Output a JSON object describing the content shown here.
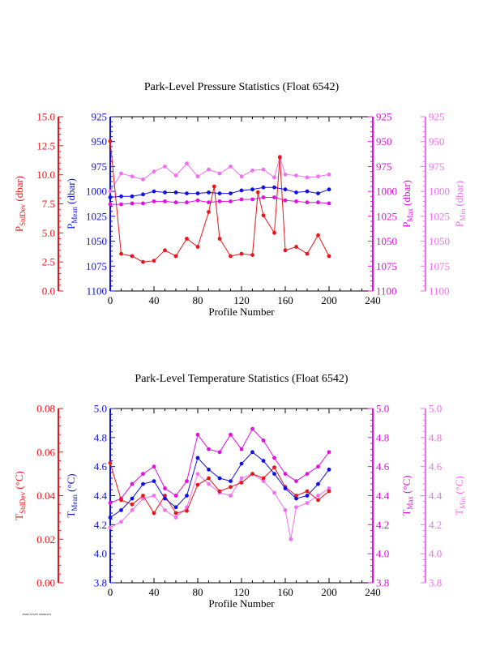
{
  "colors": {
    "stddev": "#e8161b",
    "mean": "#1010e0",
    "max": "#e010e0",
    "min": "#f070f0",
    "frame": "#000000"
  },
  "footer_text": "PARKSTATS 20060123",
  "chart_data": [
    {
      "type": "line",
      "title": "Park-Level Pressure Statistics (Float 6542)",
      "xlabel": "Profile Number",
      "xlim": [
        0,
        240
      ],
      "x_ticks": [
        "0",
        "40",
        "80",
        "120",
        "160",
        "200",
        "240"
      ],
      "grid": false,
      "legend": "none",
      "axes": [
        {
          "label_main": "P",
          "label_sub": "StdDev",
          "label_unit": " (dbar)",
          "range": [
            0,
            15
          ],
          "inverted": false,
          "side": "left-outer",
          "ticks": [
            "0.0",
            "2.5",
            "5.0",
            "7.5",
            "10.0",
            "12.5",
            "15.0"
          ]
        },
        {
          "label_main": "P",
          "label_sub": "Mean",
          "label_unit": " (dbar)",
          "range": [
            925,
            1100
          ],
          "inverted": true,
          "side": "left-inner",
          "ticks": [
            "925",
            "950",
            "975",
            "1000",
            "1025",
            "1050",
            "1075",
            "1100"
          ]
        },
        {
          "label_main": "P",
          "label_sub": "Max",
          "label_unit": " (dbar)",
          "range": [
            925,
            1100
          ],
          "inverted": true,
          "side": "right-inner",
          "ticks": [
            "925",
            "950",
            "975",
            "1000",
            "1025",
            "1050",
            "1075",
            "1100"
          ]
        },
        {
          "label_main": "P",
          "label_sub": "Min",
          "label_unit": " (dbar)",
          "range": [
            925,
            1100
          ],
          "inverted": true,
          "side": "right-outer",
          "ticks": [
            "925",
            "950",
            "975",
            "1000",
            "1025",
            "1050",
            "1075",
            "1100"
          ]
        }
      ],
      "series": [
        {
          "name": "StdDev",
          "axis": 0,
          "x": [
            0,
            10,
            20,
            30,
            40,
            50,
            60,
            70,
            80,
            90,
            95,
            100,
            110,
            120,
            130,
            135,
            140,
            150,
            155,
            160,
            170,
            180,
            190,
            200
          ],
          "y": [
            12.9,
            3.2,
            3.0,
            2.5,
            2.6,
            3.5,
            3.0,
            4.5,
            3.8,
            6.8,
            9.0,
            4.5,
            3.0,
            3.2,
            3.1,
            8.5,
            6.5,
            5.0,
            11.5,
            3.5,
            3.8,
            3.2,
            4.8,
            3.0
          ]
        },
        {
          "name": "Mean",
          "axis": 1,
          "x": [
            0,
            10,
            20,
            30,
            40,
            50,
            60,
            70,
            80,
            90,
            100,
            110,
            120,
            130,
            140,
            150,
            160,
            170,
            180,
            190,
            200
          ],
          "y": [
            1006,
            1005,
            1005,
            1003,
            1000,
            1001,
            1001,
            1002,
            1002,
            1001,
            1002,
            1002,
            999,
            998,
            996,
            996,
            998,
            1001,
            1000,
            1002,
            998
          ]
        },
        {
          "name": "Max",
          "axis": 2,
          "x": [
            0,
            10,
            20,
            30,
            40,
            50,
            60,
            70,
            80,
            90,
            100,
            110,
            120,
            130,
            140,
            150,
            160,
            170,
            180,
            190,
            200
          ],
          "y": [
            1013,
            1013,
            1012,
            1012,
            1010,
            1010,
            1011,
            1011,
            1009,
            1011,
            1010,
            1010,
            1008,
            1008,
            1006,
            1006,
            1009,
            1010,
            1011,
            1011,
            1012
          ]
        },
        {
          "name": "Min",
          "axis": 3,
          "x": [
            0,
            10,
            20,
            30,
            40,
            50,
            60,
            70,
            80,
            90,
            100,
            110,
            120,
            130,
            140,
            150,
            155,
            160,
            170,
            180,
            190,
            200
          ],
          "y": [
            1000,
            982,
            985,
            988,
            980,
            975,
            984,
            972,
            985,
            978,
            982,
            975,
            985,
            979,
            978,
            986,
            965,
            983,
            984,
            986,
            985,
            983
          ]
        }
      ]
    },
    {
      "type": "line",
      "title": "Park-Level Temperature Statistics (Float 6542)",
      "xlabel": "Profile Number",
      "xlim": [
        0,
        240
      ],
      "x_ticks": [
        "0",
        "40",
        "80",
        "120",
        "160",
        "200",
        "240"
      ],
      "grid": false,
      "legend": "none",
      "axes": [
        {
          "label_main": "T",
          "label_sub": "StdDev",
          "label_unit": " (°C)",
          "range": [
            0,
            0.08
          ],
          "inverted": false,
          "side": "left-outer",
          "ticks": [
            "0.00",
            "0.02",
            "0.04",
            "0.06",
            "0.08"
          ]
        },
        {
          "label_main": "T",
          "label_sub": "Mean",
          "label_unit": " (°C)",
          "range": [
            3.8,
            5.0
          ],
          "inverted": false,
          "side": "left-inner",
          "ticks": [
            "3.8",
            "4.0",
            "4.2",
            "4.4",
            "4.6",
            "4.8",
            "5.0"
          ]
        },
        {
          "label_main": "T",
          "label_sub": "Max",
          "label_unit": " (°C)",
          "range": [
            3.8,
            5.0
          ],
          "inverted": false,
          "side": "right-inner",
          "ticks": [
            "3.8",
            "4.0",
            "4.2",
            "4.4",
            "4.6",
            "4.8",
            "5.0"
          ]
        },
        {
          "label_main": "T",
          "label_sub": "Min",
          "label_unit": " (°C)",
          "range": [
            3.8,
            5.0
          ],
          "inverted": false,
          "side": "right-outer",
          "ticks": [
            "3.8",
            "4.0",
            "4.2",
            "4.4",
            "4.6",
            "4.8",
            "5.0"
          ]
        }
      ],
      "series": [
        {
          "name": "StdDev",
          "axis": 0,
          "x": [
            0,
            10,
            20,
            30,
            40,
            50,
            60,
            70,
            80,
            90,
            100,
            110,
            120,
            130,
            140,
            150,
            160,
            170,
            180,
            190,
            200
          ],
          "y": [
            0.055,
            0.038,
            0.036,
            0.04,
            0.032,
            0.04,
            0.032,
            0.033,
            0.045,
            0.048,
            0.042,
            0.044,
            0.046,
            0.05,
            0.048,
            0.053,
            0.044,
            0.04,
            0.042,
            0.038,
            0.042
          ]
        },
        {
          "name": "Mean",
          "axis": 1,
          "x": [
            0,
            10,
            20,
            30,
            40,
            50,
            60,
            70,
            80,
            90,
            100,
            110,
            120,
            130,
            140,
            150,
            160,
            170,
            180,
            190,
            200
          ],
          "y": [
            4.25,
            4.3,
            4.38,
            4.48,
            4.5,
            4.38,
            4.32,
            4.4,
            4.66,
            4.58,
            4.52,
            4.5,
            4.62,
            4.7,
            4.64,
            4.55,
            4.45,
            4.38,
            4.4,
            4.48,
            4.58
          ]
        },
        {
          "name": "Max",
          "axis": 2,
          "x": [
            0,
            10,
            20,
            30,
            40,
            50,
            60,
            70,
            80,
            90,
            100,
            110,
            120,
            130,
            140,
            150,
            160,
            170,
            180,
            190,
            200
          ],
          "y": [
            4.35,
            4.38,
            4.48,
            4.55,
            4.6,
            4.45,
            4.4,
            4.5,
            4.82,
            4.72,
            4.7,
            4.82,
            4.72,
            4.86,
            4.78,
            4.66,
            4.55,
            4.5,
            4.55,
            4.6,
            4.7
          ]
        },
        {
          "name": "Min",
          "axis": 3,
          "x": [
            0,
            10,
            20,
            30,
            40,
            50,
            60,
            70,
            80,
            90,
            100,
            110,
            120,
            130,
            140,
            150,
            160,
            165,
            170,
            180,
            190,
            200
          ],
          "y": [
            4.18,
            4.22,
            4.3,
            4.38,
            4.4,
            4.3,
            4.25,
            4.32,
            4.55,
            4.48,
            4.42,
            4.4,
            4.52,
            4.55,
            4.5,
            4.42,
            4.3,
            4.1,
            4.32,
            4.35,
            4.4,
            4.45
          ]
        }
      ]
    }
  ]
}
